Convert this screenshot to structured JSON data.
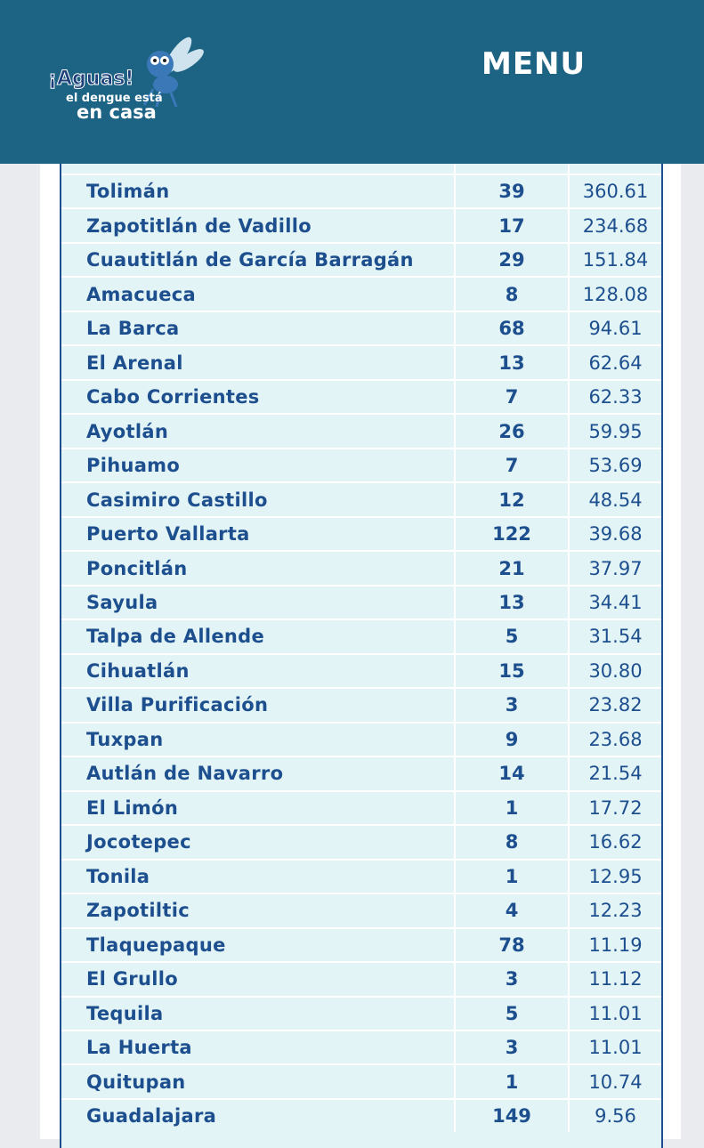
{
  "header": {
    "logo": {
      "title": "¡Aguas!",
      "line1": "el dengue está",
      "line2": "en casa"
    },
    "menu": "MENU"
  },
  "table": {
    "rows": [
      [
        "Tolimán",
        "39",
        "360.61"
      ],
      [
        "Zapotitlán de Vadillo",
        "17",
        "234.68"
      ],
      [
        "Cuautitlán de García Barragán",
        "29",
        "151.84"
      ],
      [
        "Amacueca",
        "8",
        "128.08"
      ],
      [
        "La Barca",
        "68",
        "94.61"
      ],
      [
        "El Arenal",
        "13",
        "62.64"
      ],
      [
        "Cabo Corrientes",
        "7",
        "62.33"
      ],
      [
        "Ayotlán",
        "26",
        "59.95"
      ],
      [
        "Pihuamo",
        "7",
        "53.69"
      ],
      [
        "Casimiro Castillo",
        "12",
        "48.54"
      ],
      [
        "Puerto Vallarta",
        "122",
        "39.68"
      ],
      [
        "Poncitlán",
        "21",
        "37.97"
      ],
      [
        "Sayula",
        "13",
        "34.41"
      ],
      [
        "Talpa de Allende",
        "5",
        "31.54"
      ],
      [
        "Cihuatlán",
        "15",
        "30.80"
      ],
      [
        "Villa Purificación",
        "3",
        "23.82"
      ],
      [
        "Tuxpan",
        "9",
        "23.68"
      ],
      [
        "Autlán de Navarro",
        "14",
        "21.54"
      ],
      [
        "El Limón",
        "1",
        "17.72"
      ],
      [
        "Jocotepec",
        "8",
        "16.62"
      ],
      [
        "Tonila",
        "1",
        "12.95"
      ],
      [
        "Zapotiltic",
        "4",
        "12.23"
      ],
      [
        "Tlaquepaque",
        "78",
        "11.19"
      ],
      [
        "El Grullo",
        "3",
        "11.12"
      ],
      [
        "Tequila",
        "5",
        "11.01"
      ],
      [
        "La Huerta",
        "3",
        "11.01"
      ],
      [
        "Quitupan",
        "1",
        "10.74"
      ],
      [
        "Guadalajara",
        "149",
        "9.56"
      ]
    ]
  }
}
